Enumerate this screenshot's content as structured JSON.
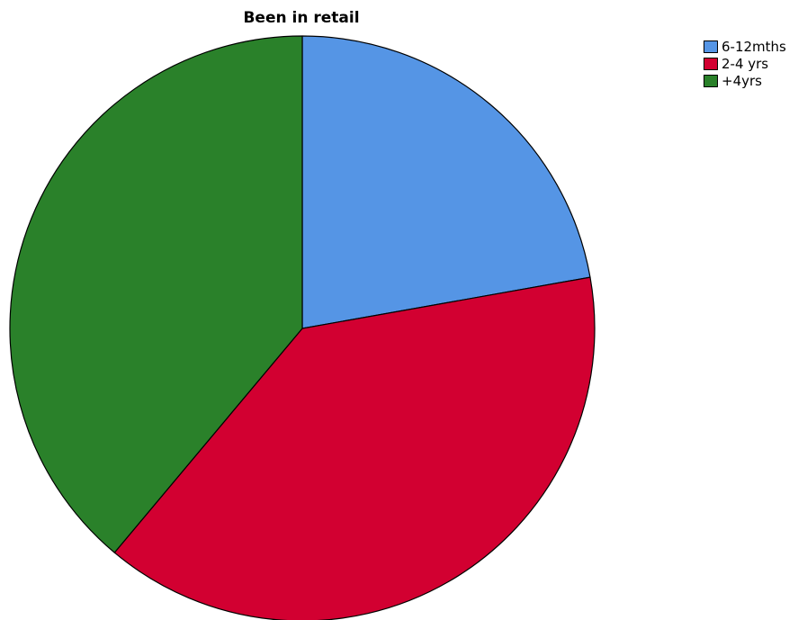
{
  "chart_data": {
    "type": "pie",
    "title": "Been in retail",
    "categories": [
      "6-12mths",
      "2-4 yrs",
      "+4yrs"
    ],
    "values": [
      22.2,
      38.9,
      38.9
    ],
    "colors": [
      "#5595e5",
      "#d20031",
      "#2a812a"
    ],
    "start_angle_deg": 0,
    "direction": "clockwise",
    "legend_position": "top-right"
  }
}
